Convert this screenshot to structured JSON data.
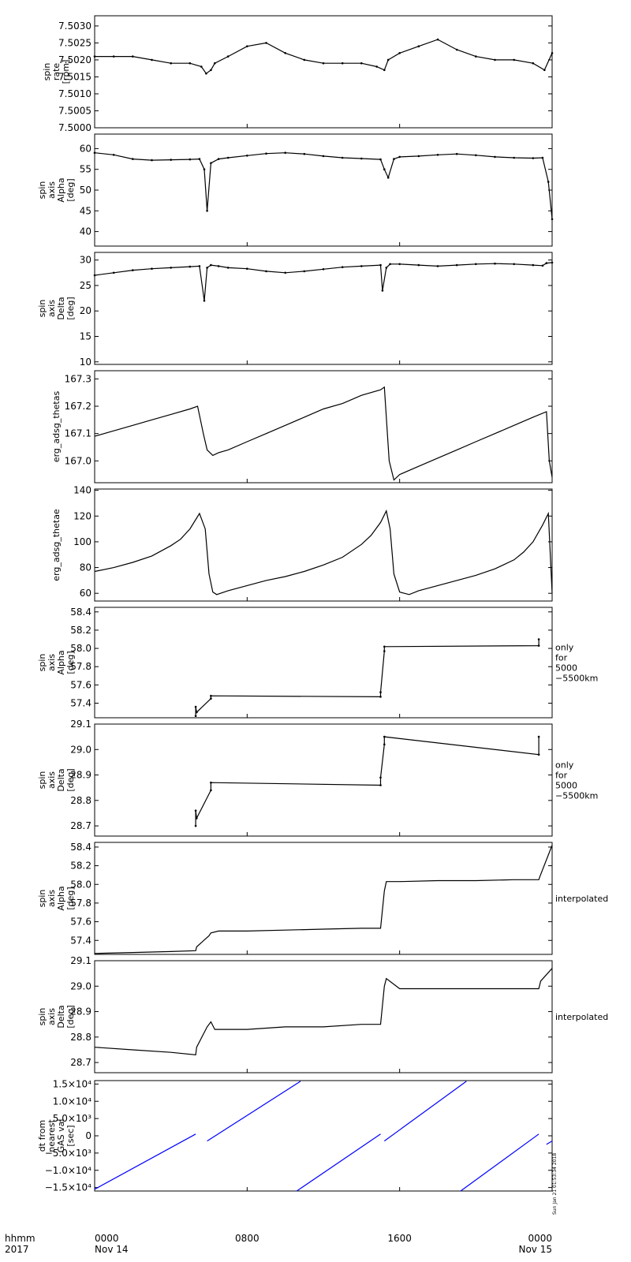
{
  "x_axis": {
    "ticks": [
      {
        "t": 0,
        "line1": "0000",
        "line2": "Nov 14"
      },
      {
        "t": 8,
        "line1": "0800",
        "line2": ""
      },
      {
        "t": 16,
        "line1": "1600",
        "line2": ""
      },
      {
        "t": 24,
        "line1": "0000",
        "line2": "Nov 15"
      }
    ],
    "corner_label_1": "hhmm",
    "corner_label_2": "2017",
    "range_hours": [
      0,
      24
    ]
  },
  "timestamp": "Sun Jan 21 01:53:34 2018",
  "colors": {
    "axes": "#000000",
    "trace": "#000000",
    "dt_trace": "#0000ff"
  },
  "chart_data": [
    {
      "type": "scatter",
      "ylabel": [
        "spin",
        "rate",
        "[rpm]"
      ],
      "ylim": [
        7.5,
        7.5033
      ],
      "yticks": [
        7.5,
        7.5005,
        7.501,
        7.5015,
        7.502,
        7.5025,
        7.503
      ],
      "yticklabels": [
        "7.5000",
        "7.5005",
        "7.5010",
        "7.5015",
        "7.5020",
        "7.5025",
        "7.5030"
      ],
      "series": [
        {
          "color": "#000000",
          "x": [
            0,
            1,
            2,
            3,
            4,
            5,
            5.6,
            5.85,
            6.1,
            6.3,
            7,
            8,
            9,
            10,
            11,
            12,
            13,
            14,
            14.8,
            15.2,
            15.4,
            16,
            17,
            18,
            19,
            20,
            21,
            22,
            23,
            23.6,
            24
          ],
          "y": [
            7.5021,
            7.5021,
            7.5021,
            7.502,
            7.5019,
            7.5019,
            7.5018,
            7.5016,
            7.5017,
            7.5019,
            7.5021,
            7.5024,
            7.5025,
            7.5022,
            7.502,
            7.5019,
            7.5019,
            7.5019,
            7.5018,
            7.5017,
            7.502,
            7.5022,
            7.5024,
            7.5026,
            7.5023,
            7.5021,
            7.502,
            7.502,
            7.5019,
            7.5017,
            7.5022
          ]
        }
      ]
    },
    {
      "type": "scatter",
      "ylabel": [
        "spin",
        "axis",
        "Alpha",
        "[deg]"
      ],
      "ylim": [
        36.5,
        63.5
      ],
      "yticks": [
        40,
        45,
        50,
        55,
        60
      ],
      "yticklabels": [
        "40",
        "45",
        "50",
        "55",
        "60"
      ],
      "series": [
        {
          "color": "#000000",
          "x": [
            0,
            1,
            2,
            3,
            4,
            5,
            5.5,
            5.75,
            5.9,
            6.1,
            6.5,
            7,
            8,
            9,
            10,
            11,
            12,
            13,
            14,
            15,
            15.2,
            15.4,
            15.7,
            16,
            17,
            18,
            19,
            20,
            21,
            22,
            23,
            23.5,
            23.8,
            24
          ],
          "y": [
            59,
            58.5,
            57.5,
            57.2,
            57.3,
            57.4,
            57.5,
            55,
            45,
            56.5,
            57.5,
            57.8,
            58.3,
            58.8,
            59,
            58.7,
            58.2,
            57.8,
            57.6,
            57.4,
            55,
            53,
            57.5,
            58,
            58.2,
            58.5,
            58.7,
            58.4,
            58,
            57.8,
            57.7,
            57.8,
            52,
            43
          ]
        }
      ]
    },
    {
      "type": "scatter",
      "ylabel": [
        "spin",
        "axis",
        "Delta",
        "[deg]"
      ],
      "ylim": [
        9.5,
        31.5
      ],
      "yticks": [
        10,
        15,
        20,
        25,
        30
      ],
      "yticklabels": [
        "10",
        "15",
        "20",
        "25",
        "30"
      ],
      "series": [
        {
          "color": "#000000",
          "x": [
            0,
            1,
            2,
            3,
            4,
            5,
            5.5,
            5.75,
            5.9,
            6.1,
            6.5,
            7,
            8,
            9,
            10,
            11,
            12,
            13,
            14,
            15,
            15.1,
            15.3,
            15.5,
            16,
            17,
            18,
            19,
            20,
            21,
            22,
            23,
            23.5,
            23.7,
            24
          ],
          "y": [
            27,
            27.5,
            28,
            28.3,
            28.5,
            28.7,
            28.8,
            22,
            28.5,
            29,
            28.8,
            28.5,
            28.3,
            27.8,
            27.5,
            27.8,
            28.2,
            28.6,
            28.8,
            29,
            24,
            28.5,
            29.2,
            29.2,
            29,
            28.8,
            29,
            29.2,
            29.3,
            29.2,
            29,
            28.9,
            29.4,
            29.5
          ]
        }
      ]
    },
    {
      "type": "line",
      "ylabel": [
        "erg_adsg_thetas"
      ],
      "ylim": [
        166.92,
        167.33
      ],
      "yticks": [
        167.0,
        167.1,
        167.2,
        167.3
      ],
      "yticklabels": [
        "167.0",
        "167.1",
        "167.2",
        "167.3"
      ],
      "series": [
        {
          "color": "#000000",
          "x": [
            0,
            1,
            2,
            3,
            4,
            5,
            5.4,
            5.7,
            5.9,
            6.2,
            6.5,
            7,
            8,
            9,
            10,
            11,
            12,
            13,
            14,
            15,
            15.2,
            15.45,
            15.7,
            16,
            17,
            18,
            19,
            20,
            21,
            22,
            23,
            23.7,
            23.85,
            24
          ],
          "y": [
            167.09,
            167.11,
            167.13,
            167.15,
            167.17,
            167.19,
            167.2,
            167.1,
            167.04,
            167.02,
            167.03,
            167.04,
            167.07,
            167.1,
            167.13,
            167.16,
            167.19,
            167.21,
            167.24,
            167.26,
            167.27,
            167.0,
            166.93,
            166.95,
            166.98,
            167.01,
            167.04,
            167.07,
            167.1,
            167.13,
            167.16,
            167.18,
            167.0,
            166.94
          ]
        }
      ]
    },
    {
      "type": "line",
      "ylabel": [
        "erg_adsg_thetae"
      ],
      "ylim": [
        54,
        141
      ],
      "yticks": [
        60,
        80,
        100,
        120,
        140
      ],
      "yticklabels": [
        "60",
        "80",
        "100",
        "120",
        "140"
      ],
      "series": [
        {
          "color": "#000000",
          "x": [
            0,
            1,
            2,
            3,
            4,
            4.5,
            5,
            5.5,
            5.8,
            6.0,
            6.2,
            6.4,
            7,
            8,
            9,
            10,
            11,
            12,
            13,
            14,
            14.5,
            15,
            15.3,
            15.5,
            15.7,
            16,
            16.5,
            17,
            18,
            19,
            20,
            21,
            22,
            22.5,
            23,
            23.5,
            23.8,
            24
          ],
          "y": [
            77,
            80,
            84,
            89,
            97,
            102,
            110,
            122,
            110,
            75,
            61,
            59,
            62,
            66,
            70,
            73,
            77,
            82,
            88,
            98,
            105,
            115,
            124,
            110,
            75,
            61,
            59,
            62,
            66,
            70,
            74,
            79,
            86,
            92,
            100,
            113,
            122,
            60
          ]
        }
      ]
    },
    {
      "type": "scatter",
      "ylabel": [
        "spin",
        "axis",
        "Alpha",
        "[deg]"
      ],
      "side_label": [
        "only",
        "for",
        "5000",
        "−5500km"
      ],
      "ylim": [
        57.24,
        58.45
      ],
      "yticks": [
        57.4,
        57.6,
        57.8,
        58.0,
        58.2,
        58.4
      ],
      "yticklabels": [
        "57.4",
        "57.6",
        "57.8",
        "58.0",
        "58.2",
        "58.4"
      ],
      "series": [
        {
          "color": "#000000",
          "x": [
            5.3,
            5.3,
            5.35,
            6.1,
            6.1,
            15.0,
            15.0,
            15.2,
            15.2,
            23.3,
            23.3
          ],
          "y": [
            57.26,
            57.36,
            57.3,
            57.45,
            57.48,
            57.47,
            57.52,
            57.97,
            58.02,
            58.03,
            58.1
          ]
        }
      ]
    },
    {
      "type": "scatter",
      "ylabel": [
        "spin",
        "axis",
        "Delta",
        "[deg]"
      ],
      "side_label": [
        "only",
        "for",
        "5000",
        "−5500km"
      ],
      "ylim": [
        28.66,
        29.1
      ],
      "yticks": [
        28.7,
        28.8,
        28.9,
        29.0,
        29.1
      ],
      "yticklabels": [
        "28.7",
        "28.8",
        "28.9",
        "29.0",
        "29.1"
      ],
      "series": [
        {
          "color": "#000000",
          "x": [
            5.3,
            5.3,
            5.35,
            6.1,
            6.1,
            15.0,
            15.0,
            15.2,
            15.2,
            23.3,
            23.3
          ],
          "y": [
            28.7,
            28.76,
            28.73,
            28.84,
            28.87,
            28.86,
            28.89,
            29.02,
            29.05,
            28.98,
            29.05
          ]
        }
      ]
    },
    {
      "type": "line",
      "ylabel": [
        "spin",
        "axis",
        "Alpha",
        "[deg]"
      ],
      "side_label": [
        "interpolated"
      ],
      "ylim": [
        57.25,
        58.45
      ],
      "yticks": [
        57.4,
        57.6,
        57.8,
        58.0,
        58.2,
        58.4
      ],
      "yticklabels": [
        "57.4",
        "57.6",
        "57.8",
        "58.0",
        "58.2",
        "58.4"
      ],
      "series": [
        {
          "color": "#000000",
          "x": [
            0,
            2,
            4,
            5.3,
            5.35,
            6.0,
            6.1,
            6.5,
            8,
            10,
            12,
            14,
            15.0,
            15.2,
            15.3,
            16,
            18,
            20,
            22,
            23.3,
            23.35,
            24
          ],
          "y": [
            57.26,
            57.27,
            57.28,
            57.29,
            57.33,
            57.45,
            57.48,
            57.5,
            57.5,
            57.51,
            57.52,
            57.53,
            57.53,
            57.93,
            58.03,
            58.03,
            58.04,
            58.04,
            58.05,
            58.05,
            58.08,
            58.42
          ]
        }
      ]
    },
    {
      "type": "line",
      "ylabel": [
        "spin",
        "axis",
        "Delta",
        "[deg]"
      ],
      "side_label": [
        "interpolated"
      ],
      "ylim": [
        28.66,
        29.1
      ],
      "yticks": [
        28.7,
        28.8,
        28.9,
        29.0,
        29.1
      ],
      "yticklabels": [
        "28.7",
        "28.8",
        "28.9",
        "29.0",
        "29.1"
      ],
      "series": [
        {
          "color": "#000000",
          "x": [
            0,
            2,
            4,
            5.3,
            5.35,
            5.9,
            6.1,
            6.3,
            8,
            10,
            12,
            14,
            15.0,
            15.2,
            15.3,
            16,
            18,
            20,
            22,
            23.3,
            23.4,
            24
          ],
          "y": [
            28.76,
            28.75,
            28.74,
            28.73,
            28.76,
            28.84,
            28.86,
            28.83,
            28.83,
            28.84,
            28.84,
            28.85,
            28.85,
            29.0,
            29.03,
            28.99,
            28.99,
            28.99,
            28.99,
            28.99,
            29.02,
            29.07
          ]
        }
      ]
    },
    {
      "type": "line",
      "ylabel": [
        "dt from",
        "nearest",
        "GAS val",
        "[sec]"
      ],
      "ylim": [
        -16000,
        16000
      ],
      "yticks": [
        -15000,
        -10000,
        -5000,
        0,
        5000,
        10000,
        15000
      ],
      "yticklabels": [
        "−1.5×10⁴",
        "−1.0×10⁴",
        "−5.0×10³",
        "0",
        "5.0×10³",
        "1.0×10⁴",
        "1.5×10⁴"
      ],
      "series": [
        {
          "color": "#0000ff",
          "x": [
            0,
            5.3
          ],
          "y": [
            -15500,
            500
          ]
        },
        {
          "color": "#0000ff",
          "x": [
            5.9,
            10.8
          ],
          "y": [
            -1500,
            15800
          ]
        },
        {
          "color": "#0000ff",
          "x": [
            10.6,
            15.0
          ],
          "y": [
            -16000,
            500
          ]
        },
        {
          "color": "#0000ff",
          "x": [
            15.2,
            19.5
          ],
          "y": [
            -1500,
            15800
          ]
        },
        {
          "color": "#0000ff",
          "x": [
            19.2,
            23.3
          ],
          "y": [
            -16000,
            500
          ]
        },
        {
          "color": "#0000ff",
          "x": [
            23.7,
            24
          ],
          "y": [
            -2500,
            -1500
          ]
        }
      ]
    }
  ]
}
